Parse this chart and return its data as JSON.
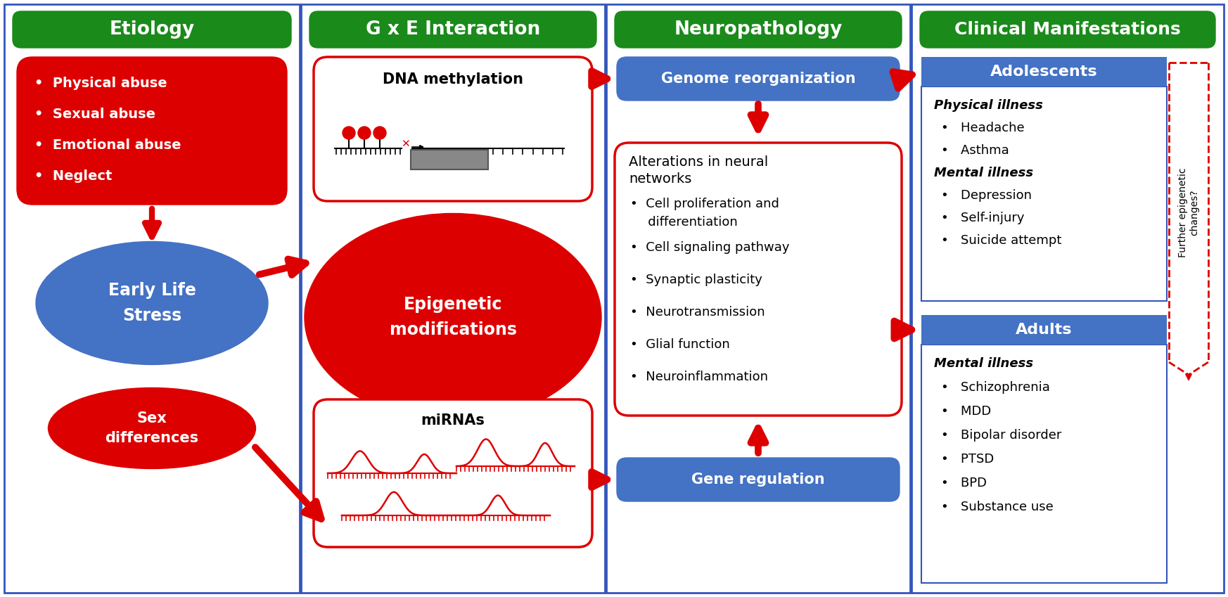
{
  "bg_color": "#ffffff",
  "border_color": "#3355bb",
  "green_color": "#1a8a1a",
  "red_color": "#dd0000",
  "blue_color": "#4472C4",
  "white": "#ffffff",
  "black": "#000000",
  "panel_headers": [
    "Etiology",
    "G x E Interaction",
    "Neuropathology",
    "Clinical Manifestations"
  ],
  "etiology_bullets": [
    "Physical abuse",
    "Sexual abuse",
    "Emotional abuse",
    "Neglect"
  ],
  "neuro_box_title_line1": "Alterations in neural",
  "neuro_box_title_line2": "networks",
  "neuro_bullets": [
    "Cell proliferation and\ndifferentiation",
    "Cell signaling pathway",
    "Synaptic plasticity",
    "Neurotransmission",
    "Glial function",
    "Neuroinflammation"
  ],
  "adolescent_physical_bullets": [
    "Headache",
    "Asthma"
  ],
  "adolescent_mental_bullets": [
    "Depression",
    "Self-injury",
    "Suicide attempt"
  ],
  "adult_mental_bullets": [
    "Schizophrenia",
    "MDD",
    "Bipolar disorder",
    "PTSD",
    "BPD",
    "Substance use"
  ]
}
